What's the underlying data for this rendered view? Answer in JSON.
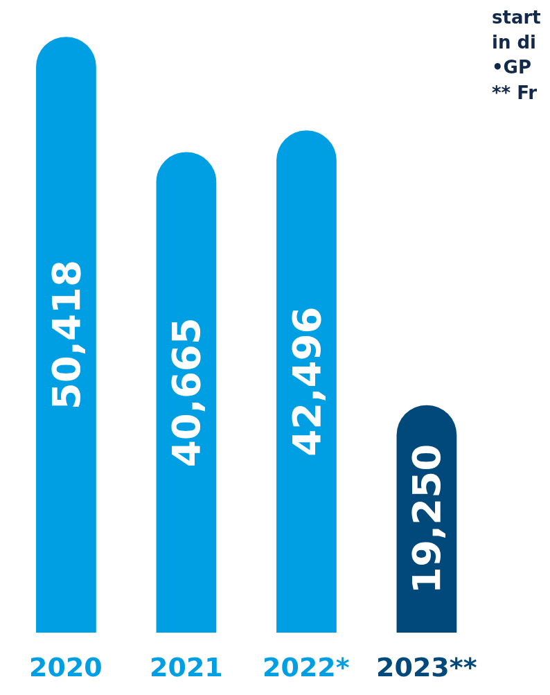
{
  "chart_data": {
    "type": "bar",
    "categories": [
      "2020",
      "2021",
      "2022*",
      "2023**"
    ],
    "values": [
      50418,
      40665,
      42496,
      19250
    ],
    "colors": [
      "#009fe3",
      "#009fe3",
      "#009fe3",
      "#00497a"
    ],
    "value_labels": [
      "50,418",
      "40,665",
      "42,496",
      "19,250"
    ],
    "annotations": [
      "start",
      "in di",
      "•GP",
      "** Fr"
    ]
  }
}
